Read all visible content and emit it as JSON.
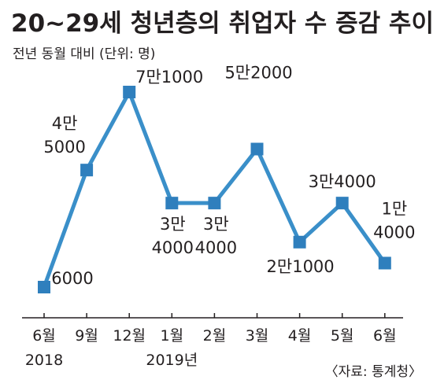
{
  "title": "20~29세 청년층의 취업자 수 증감 추이",
  "subtitle": "전년 동월 대비 (단위: 명)",
  "source": "〈자료: 통계청〉",
  "colors": {
    "line": "#3a8fc9",
    "marker": "#2f7fbd",
    "text": "#231f20",
    "axis": "#231f20"
  },
  "chart_data": {
    "type": "line",
    "title": "20~29세 청년층의 취업자 수 증감 추이",
    "subtitle": "전년 동월 대비 (단위: 명)",
    "categories": [
      "6월",
      "9월",
      "12월",
      "1월",
      "2월",
      "3월",
      "4월",
      "5월",
      "6월"
    ],
    "year_labels": [
      {
        "at": "6월 2018",
        "text": "2018"
      },
      {
        "at": "1월",
        "text": "2019년"
      }
    ],
    "series": [
      {
        "values": [
          6000,
          45000,
          71000,
          34000,
          34000,
          52000,
          21000,
          34000,
          14000
        ]
      }
    ],
    "data_labels": [
      [
        "6000"
      ],
      [
        "4만",
        "5000"
      ],
      [
        "7만1000"
      ],
      [
        "3만",
        "4000"
      ],
      [
        "3만",
        "4000"
      ],
      [
        "5만2000"
      ],
      [
        "2만1000"
      ],
      [
        "3만4000"
      ],
      [
        "1만",
        "4000"
      ]
    ],
    "marker": "square",
    "grid": false
  }
}
